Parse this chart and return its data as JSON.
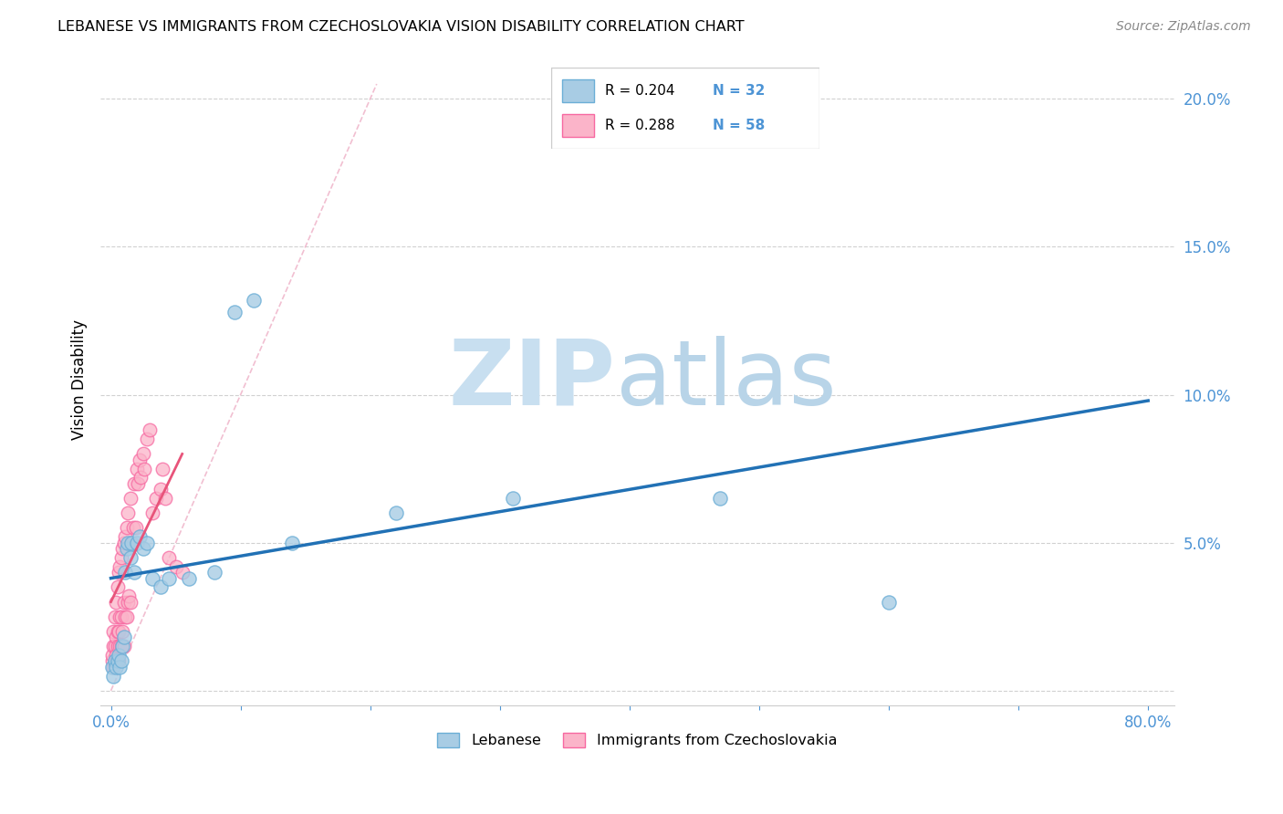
{
  "title": "LEBANESE VS IMMIGRANTS FROM CZECHOSLOVAKIA VISION DISABILITY CORRELATION CHART",
  "source": "Source: ZipAtlas.com",
  "ylabel": "Vision Disability",
  "blue_scatter_color": "#a8cce4",
  "blue_scatter_edge": "#6baed6",
  "pink_scatter_color": "#fbb4c9",
  "pink_scatter_edge": "#f768a1",
  "blue_line_color": "#2171b5",
  "pink_line_color": "#e8547a",
  "diag_line_color": "#f0b8cc",
  "tick_color": "#4d94d5",
  "grid_color": "#cccccc",
  "legend_r1": "R = 0.204",
  "legend_n1": "N = 32",
  "legend_r2": "R = 0.288",
  "legend_n2": "N = 58",
  "blue_x": [
    0.001,
    0.002,
    0.003,
    0.004,
    0.005,
    0.006,
    0.007,
    0.008,
    0.009,
    0.01,
    0.011,
    0.012,
    0.013,
    0.015,
    0.016,
    0.018,
    0.02,
    0.022,
    0.025,
    0.028,
    0.032,
    0.038,
    0.045,
    0.06,
    0.08,
    0.095,
    0.11,
    0.14,
    0.22,
    0.31,
    0.47,
    0.6
  ],
  "blue_y": [
    0.008,
    0.005,
    0.01,
    0.008,
    0.01,
    0.012,
    0.008,
    0.01,
    0.015,
    0.018,
    0.04,
    0.048,
    0.05,
    0.045,
    0.05,
    0.04,
    0.05,
    0.052,
    0.048,
    0.05,
    0.038,
    0.035,
    0.038,
    0.038,
    0.04,
    0.128,
    0.132,
    0.05,
    0.06,
    0.065,
    0.065,
    0.03
  ],
  "pink_x": [
    0.001,
    0.001,
    0.002,
    0.002,
    0.002,
    0.003,
    0.003,
    0.003,
    0.004,
    0.004,
    0.004,
    0.005,
    0.005,
    0.005,
    0.005,
    0.006,
    0.006,
    0.006,
    0.007,
    0.007,
    0.007,
    0.008,
    0.008,
    0.008,
    0.009,
    0.009,
    0.01,
    0.01,
    0.01,
    0.011,
    0.011,
    0.012,
    0.012,
    0.013,
    0.013,
    0.014,
    0.015,
    0.015,
    0.016,
    0.017,
    0.018,
    0.019,
    0.02,
    0.021,
    0.022,
    0.023,
    0.025,
    0.026,
    0.028,
    0.03,
    0.032,
    0.035,
    0.038,
    0.04,
    0.042,
    0.045,
    0.05,
    0.055
  ],
  "pink_y": [
    0.01,
    0.012,
    0.008,
    0.015,
    0.02,
    0.01,
    0.015,
    0.025,
    0.012,
    0.018,
    0.03,
    0.01,
    0.015,
    0.02,
    0.035,
    0.01,
    0.02,
    0.04,
    0.015,
    0.025,
    0.042,
    0.015,
    0.025,
    0.045,
    0.02,
    0.048,
    0.015,
    0.03,
    0.05,
    0.025,
    0.052,
    0.025,
    0.055,
    0.03,
    0.06,
    0.032,
    0.03,
    0.065,
    0.05,
    0.055,
    0.07,
    0.055,
    0.075,
    0.07,
    0.078,
    0.072,
    0.08,
    0.075,
    0.085,
    0.088,
    0.06,
    0.065,
    0.068,
    0.075,
    0.065,
    0.045,
    0.042,
    0.04
  ],
  "blue_line": {
    "x0": 0.0,
    "x1": 0.8,
    "y0": 0.038,
    "y1": 0.098
  },
  "pink_line": {
    "x0": 0.0,
    "x1": 0.055,
    "y0": 0.03,
    "y1": 0.08
  },
  "diag_line": {
    "x0": 0.0,
    "x1": 0.205,
    "y0": 0.0,
    "y1": 0.205
  },
  "xlim": [
    -0.008,
    0.82
  ],
  "ylim": [
    -0.005,
    0.215
  ],
  "xticks": [
    0.0,
    0.1,
    0.2,
    0.3,
    0.4,
    0.5,
    0.6,
    0.7,
    0.8
  ],
  "yticks": [
    0.0,
    0.05,
    0.1,
    0.15,
    0.2
  ]
}
